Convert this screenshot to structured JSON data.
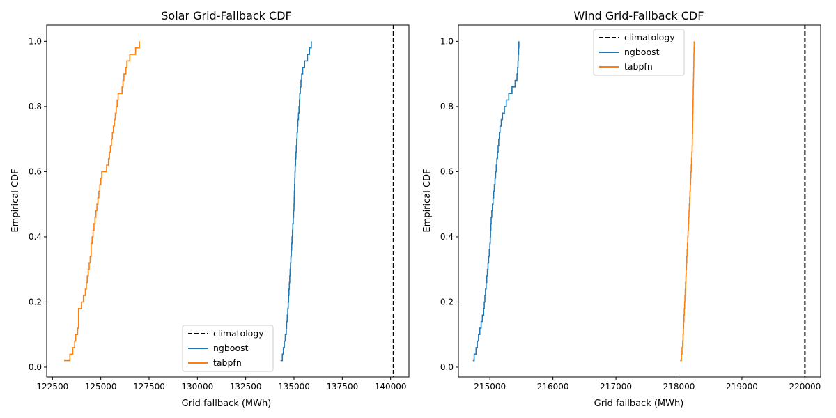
{
  "chart_data": [
    {
      "type": "line",
      "step": true,
      "title": "Solar Grid-Fallback CDF",
      "xlabel": "Grid fallback (MWh)",
      "ylabel": "Empirical CDF",
      "xlim": [
        122200,
        140950
      ],
      "ylim": [
        -0.03,
        1.05
      ],
      "xticks": [
        122500,
        125000,
        127500,
        130000,
        132500,
        135000,
        137500,
        140000
      ],
      "xtick_labels": [
        "122500",
        "125000",
        "127500",
        "130000",
        "132500",
        "135000",
        "137500",
        "140000"
      ],
      "yticks": [
        0.0,
        0.2,
        0.4,
        0.6,
        0.8,
        1.0
      ],
      "ytick_labels": [
        "0.0",
        "0.2",
        "0.4",
        "0.6",
        "0.8",
        "1.0"
      ],
      "legend_loc": "lower-center",
      "legend": [
        "climatology",
        "ngboost",
        "tabpfn"
      ],
      "climatology": {
        "name": "climatology",
        "x": 140150,
        "color": "#000000",
        "dash": true
      },
      "series": [
        {
          "name": "ngboost",
          "color": "#1f77b4",
          "x": [
            134300,
            134400,
            134450,
            134500,
            134550,
            134600,
            134620,
            134650,
            134680,
            134700,
            134720,
            134740,
            134760,
            134780,
            134800,
            134820,
            134840,
            134860,
            134880,
            134900,
            134920,
            134940,
            134960,
            134980,
            135000,
            135010,
            135020,
            135030,
            135040,
            135050,
            135060,
            135080,
            135100,
            135120,
            135140,
            135160,
            135180,
            135200,
            135230,
            135260,
            135280,
            135300,
            135330,
            135360,
            135400,
            135450,
            135550,
            135700,
            135800,
            135900
          ],
          "y": [
            0.02,
            0.04,
            0.06,
            0.08,
            0.1,
            0.12,
            0.14,
            0.16,
            0.18,
            0.2,
            0.22,
            0.24,
            0.26,
            0.28,
            0.3,
            0.32,
            0.34,
            0.36,
            0.38,
            0.4,
            0.42,
            0.44,
            0.46,
            0.48,
            0.5,
            0.52,
            0.54,
            0.56,
            0.58,
            0.6,
            0.62,
            0.64,
            0.66,
            0.68,
            0.7,
            0.72,
            0.74,
            0.76,
            0.78,
            0.8,
            0.82,
            0.84,
            0.86,
            0.88,
            0.9,
            0.92,
            0.94,
            0.96,
            0.98,
            1.0
          ]
        },
        {
          "name": "tabpfn",
          "color": "#ff7f0e",
          "x": [
            123100,
            123400,
            123550,
            123650,
            123700,
            123800,
            123850,
            124000,
            124100,
            124200,
            124250,
            124300,
            124350,
            124400,
            124450,
            124500,
            124550,
            124600,
            124650,
            124700,
            124750,
            124800,
            124850,
            124900,
            124950,
            125000,
            125050,
            125100,
            125300,
            125400,
            125450,
            125500,
            125550,
            125600,
            125650,
            125700,
            125750,
            125800,
            125850,
            125900,
            126000,
            126100,
            126150,
            126200,
            126300,
            126350,
            126400,
            126500,
            126800,
            127000
          ],
          "y": [
            0.02,
            0.04,
            0.06,
            0.08,
            0.1,
            0.12,
            0.18,
            0.2,
            0.22,
            0.24,
            0.26,
            0.28,
            0.3,
            0.32,
            0.34,
            0.38,
            0.4,
            0.42,
            0.44,
            0.46,
            0.48,
            0.5,
            0.52,
            0.54,
            0.56,
            0.58,
            0.6,
            0.6,
            0.62,
            0.64,
            0.66,
            0.68,
            0.7,
            0.72,
            0.74,
            0.76,
            0.78,
            0.8,
            0.82,
            0.84,
            0.84,
            0.86,
            0.88,
            0.9,
            0.92,
            0.94,
            0.94,
            0.96,
            0.98,
            1.0
          ]
        }
      ]
    },
    {
      "type": "line",
      "step": true,
      "title": "Wind Grid-Fallback CDF",
      "xlabel": "Grid fallback (MWh)",
      "ylabel": "Empirical CDF",
      "xlim": [
        214500,
        220250
      ],
      "ylim": [
        -0.03,
        1.05
      ],
      "xticks": [
        215000,
        216000,
        217000,
        218000,
        219000,
        220000
      ],
      "xtick_labels": [
        "215000",
        "216000",
        "217000",
        "218000",
        "219000",
        "220000"
      ],
      "yticks": [
        0.0,
        0.2,
        0.4,
        0.6,
        0.8,
        1.0
      ],
      "ytick_labels": [
        "0.0",
        "0.2",
        "0.4",
        "0.6",
        "0.8",
        "1.0"
      ],
      "legend_loc": "upper-center",
      "legend": [
        "climatology",
        "ngboost",
        "tabpfn"
      ],
      "climatology": {
        "name": "climatology",
        "x": 220000,
        "color": "#000000",
        "dash": true
      },
      "series": [
        {
          "name": "ngboost",
          "color": "#1f77b4",
          "x": [
            214730,
            214750,
            214780,
            214800,
            214820,
            214840,
            214860,
            214880,
            214900,
            214910,
            214920,
            214930,
            214940,
            214950,
            214960,
            214970,
            214980,
            214990,
            215000,
            215005,
            215010,
            215015,
            215020,
            215030,
            215040,
            215050,
            215060,
            215070,
            215080,
            215090,
            215100,
            215110,
            215120,
            215130,
            215140,
            215150,
            215160,
            215180,
            215200,
            215230,
            215260,
            215300,
            215350,
            215400,
            215430,
            215440,
            215445,
            215450,
            215455,
            215460
          ],
          "y": [
            0.02,
            0.04,
            0.06,
            0.08,
            0.1,
            0.12,
            0.14,
            0.16,
            0.18,
            0.2,
            0.22,
            0.24,
            0.26,
            0.28,
            0.3,
            0.32,
            0.34,
            0.36,
            0.38,
            0.4,
            0.42,
            0.44,
            0.46,
            0.48,
            0.5,
            0.52,
            0.54,
            0.56,
            0.58,
            0.6,
            0.62,
            0.64,
            0.66,
            0.68,
            0.7,
            0.72,
            0.74,
            0.76,
            0.78,
            0.8,
            0.82,
            0.84,
            0.86,
            0.88,
            0.9,
            0.92,
            0.94,
            0.96,
            0.98,
            1.0
          ]
        },
        {
          "name": "tabpfn",
          "color": "#ff7f0e",
          "x": [
            218020,
            218040,
            218050,
            218060,
            218065,
            218070,
            218075,
            218080,
            218085,
            218090,
            218095,
            218100,
            218105,
            218110,
            218115,
            218120,
            218125,
            218130,
            218135,
            218140,
            218145,
            218150,
            218155,
            218160,
            218165,
            218170,
            218175,
            218180,
            218185,
            218190,
            218195,
            218200,
            218205,
            218210,
            218212,
            218214,
            218216,
            218218,
            218220,
            218222,
            218224,
            218226,
            218228,
            218230,
            218232,
            218234,
            218236,
            218238,
            218240,
            218242
          ],
          "y": [
            0.02,
            0.04,
            0.06,
            0.08,
            0.1,
            0.12,
            0.14,
            0.16,
            0.18,
            0.2,
            0.22,
            0.24,
            0.26,
            0.28,
            0.3,
            0.32,
            0.34,
            0.36,
            0.38,
            0.4,
            0.42,
            0.44,
            0.46,
            0.48,
            0.5,
            0.52,
            0.54,
            0.56,
            0.58,
            0.6,
            0.62,
            0.64,
            0.66,
            0.68,
            0.7,
            0.72,
            0.74,
            0.76,
            0.78,
            0.8,
            0.82,
            0.84,
            0.86,
            0.88,
            0.9,
            0.92,
            0.94,
            0.96,
            0.98,
            1.0
          ]
        }
      ]
    }
  ]
}
